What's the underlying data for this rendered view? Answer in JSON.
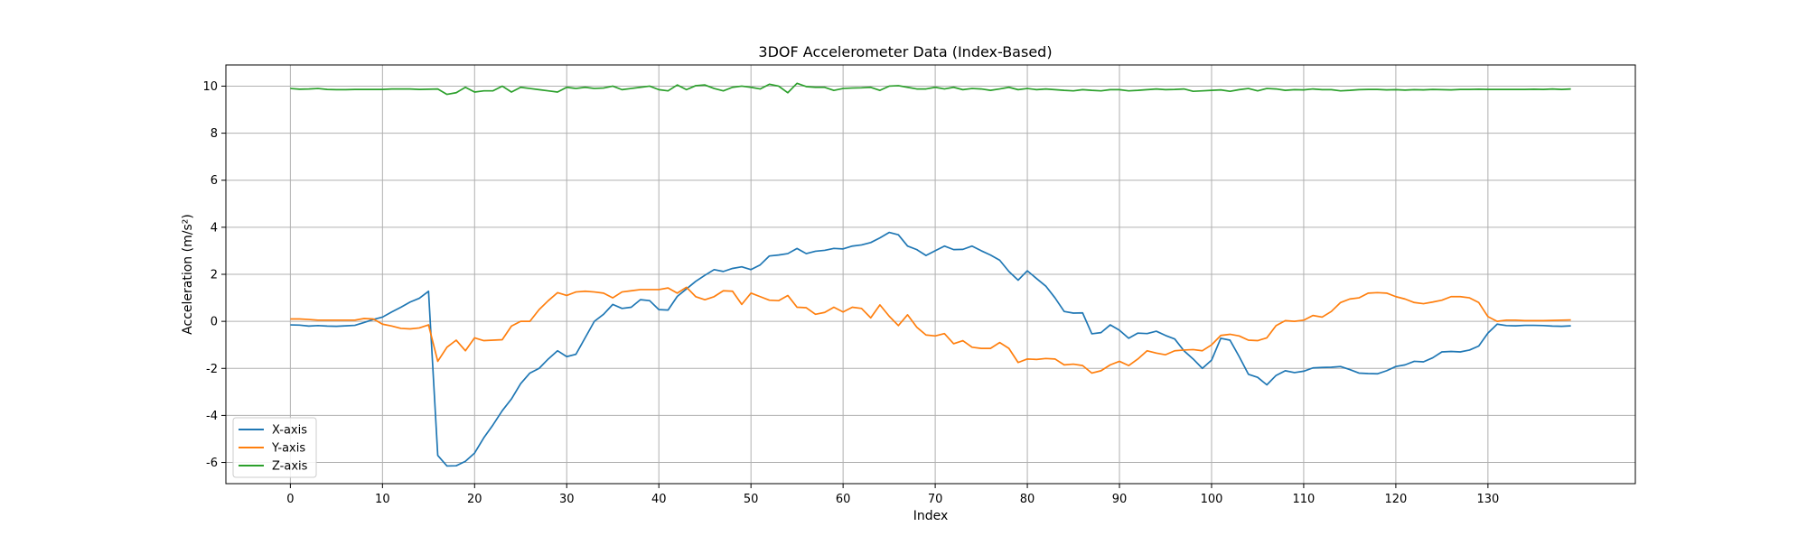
{
  "chart_data": {
    "type": "line",
    "title": "3DOF Accelerometer Data (Index-Based)",
    "xlabel": "Index",
    "ylabel": "Acceleration (m/s²)",
    "xlim": [
      -7,
      146
    ],
    "ylim": [
      -6.9,
      10.9
    ],
    "xticks": [
      0,
      10,
      20,
      30,
      40,
      50,
      60,
      70,
      80,
      90,
      100,
      110,
      120,
      130
    ],
    "yticks": [
      -6,
      -4,
      -2,
      0,
      2,
      4,
      6,
      8,
      10
    ],
    "grid": true,
    "legend_position": "lower left",
    "series": [
      {
        "name": "X-axis",
        "color": "#1f77b4",
        "values": [
          -0.15,
          -0.16,
          -0.2,
          -0.18,
          -0.2,
          -0.21,
          -0.19,
          -0.17,
          -0.05,
          0.08,
          0.18,
          0.4,
          0.6,
          0.82,
          0.98,
          1.28,
          -5.7,
          -6.15,
          -6.14,
          -5.95,
          -5.6,
          -4.95,
          -4.4,
          -3.8,
          -3.3,
          -2.65,
          -2.2,
          -2.0,
          -1.6,
          -1.25,
          -1.5,
          -1.4,
          -0.7,
          0.0,
          0.3,
          0.72,
          0.55,
          0.6,
          0.92,
          0.88,
          0.5,
          0.48,
          1.06,
          1.38,
          1.7,
          1.96,
          2.2,
          2.12,
          2.25,
          2.32,
          2.2,
          2.4,
          2.78,
          2.82,
          2.88,
          3.1,
          2.88,
          2.98,
          3.02,
          3.1,
          3.08,
          3.2,
          3.25,
          3.35,
          3.55,
          3.78,
          3.68,
          3.2,
          3.05,
          2.8,
          3.0,
          3.2,
          3.05,
          3.06,
          3.2,
          3.0,
          2.82,
          2.6,
          2.12,
          1.75,
          2.15,
          1.82,
          1.5,
          1.0,
          0.42,
          0.35,
          0.36,
          -0.53,
          -0.48,
          -0.15,
          -0.38,
          -0.72,
          -0.5,
          -0.52,
          -0.42,
          -0.6,
          -0.75,
          -1.25,
          -1.6,
          -2.0,
          -1.65,
          -0.72,
          -0.8,
          -1.5,
          -2.25,
          -2.38,
          -2.7,
          -2.3,
          -2.1,
          -2.18,
          -2.12,
          -1.98,
          -1.96,
          -1.95,
          -1.92,
          -2.05,
          -2.2,
          -2.22,
          -2.23,
          -2.1,
          -1.92,
          -1.85,
          -1.7,
          -1.72,
          -1.55,
          -1.3,
          -1.28,
          -1.3,
          -1.22,
          -1.05,
          -0.5,
          -0.12,
          -0.18,
          -0.19,
          -0.17,
          -0.17,
          -0.18,
          -0.2,
          -0.21,
          -0.19
        ]
      },
      {
        "name": "Y-axis",
        "color": "#ff7f0e",
        "values": [
          0.1,
          0.1,
          0.08,
          0.05,
          0.05,
          0.05,
          0.05,
          0.05,
          0.12,
          0.1,
          -0.12,
          -0.2,
          -0.3,
          -0.32,
          -0.28,
          -0.15,
          -1.7,
          -1.1,
          -0.8,
          -1.25,
          -0.7,
          -0.82,
          -0.8,
          -0.78,
          -0.2,
          0.0,
          0.0,
          0.5,
          0.88,
          1.22,
          1.1,
          1.25,
          1.28,
          1.25,
          1.2,
          1.0,
          1.25,
          1.3,
          1.35,
          1.35,
          1.35,
          1.42,
          1.2,
          1.45,
          1.05,
          0.92,
          1.05,
          1.3,
          1.28,
          0.72,
          1.2,
          1.05,
          0.9,
          0.88,
          1.1,
          0.6,
          0.58,
          0.3,
          0.38,
          0.6,
          0.4,
          0.6,
          0.55,
          0.15,
          0.7,
          0.22,
          -0.18,
          0.28,
          -0.25,
          -0.58,
          -0.62,
          -0.52,
          -0.95,
          -0.82,
          -1.1,
          -1.15,
          -1.15,
          -0.9,
          -1.15,
          -1.75,
          -1.6,
          -1.62,
          -1.58,
          -1.6,
          -1.85,
          -1.82,
          -1.88,
          -2.2,
          -2.1,
          -1.85,
          -1.7,
          -1.88,
          -1.6,
          -1.25,
          -1.35,
          -1.42,
          -1.25,
          -1.22,
          -1.2,
          -1.25,
          -1.0,
          -0.6,
          -0.55,
          -0.62,
          -0.8,
          -0.82,
          -0.7,
          -0.18,
          0.03,
          0.0,
          0.05,
          0.25,
          0.18,
          0.42,
          0.8,
          0.95,
          1.0,
          1.2,
          1.22,
          1.2,
          1.05,
          0.95,
          0.8,
          0.75,
          0.82,
          0.9,
          1.05,
          1.05,
          1.0,
          0.8,
          0.2,
          0.0,
          0.05,
          0.05,
          0.03,
          0.03,
          0.03,
          0.04,
          0.05,
          0.06
        ]
      },
      {
        "name": "Z-axis",
        "color": "#2ca02c",
        "values": [
          9.9,
          9.87,
          9.88,
          9.9,
          9.86,
          9.85,
          9.85,
          9.86,
          9.86,
          9.86,
          9.86,
          9.88,
          9.88,
          9.88,
          9.86,
          9.87,
          9.88,
          9.65,
          9.72,
          9.95,
          9.75,
          9.8,
          9.8,
          10.0,
          9.75,
          9.95,
          9.9,
          9.85,
          9.8,
          9.75,
          9.95,
          9.9,
          9.95,
          9.9,
          9.92,
          10.0,
          9.85,
          9.9,
          9.95,
          10.0,
          9.85,
          9.8,
          10.05,
          9.85,
          10.02,
          10.05,
          9.9,
          9.8,
          9.95,
          10.0,
          9.95,
          9.88,
          10.08,
          10.0,
          9.72,
          10.12,
          9.98,
          9.95,
          9.95,
          9.82,
          9.9,
          9.92,
          9.93,
          9.95,
          9.82,
          10.0,
          10.02,
          9.95,
          9.88,
          9.88,
          9.95,
          9.88,
          9.95,
          9.85,
          9.9,
          9.88,
          9.82,
          9.88,
          9.95,
          9.85,
          9.9,
          9.85,
          9.88,
          9.85,
          9.82,
          9.8,
          9.85,
          9.82,
          9.8,
          9.85,
          9.85,
          9.8,
          9.82,
          9.85,
          9.88,
          9.85,
          9.86,
          9.88,
          9.78,
          9.8,
          9.82,
          9.84,
          9.78,
          9.85,
          9.9,
          9.8,
          9.9,
          9.88,
          9.82,
          9.85,
          9.84,
          9.88,
          9.85,
          9.85,
          9.8,
          9.82,
          9.85,
          9.86,
          9.86,
          9.84,
          9.85,
          9.83,
          9.85,
          9.84,
          9.86,
          9.85,
          9.84,
          9.86,
          9.86,
          9.87,
          9.86,
          9.86,
          9.86,
          9.86,
          9.86,
          9.87,
          9.86,
          9.88,
          9.86,
          9.88
        ]
      }
    ]
  }
}
